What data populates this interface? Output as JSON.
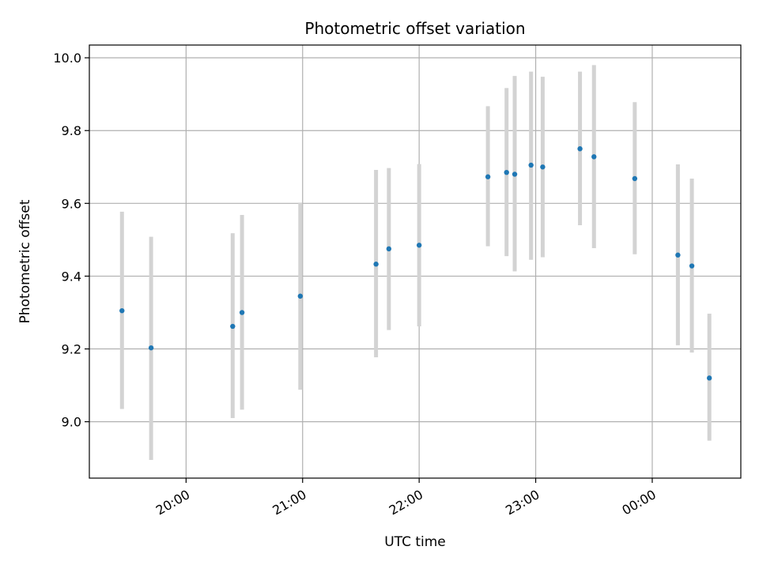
{
  "chart_data": {
    "type": "scatter",
    "title": "Photometric offset variation",
    "xlabel": "UTC time",
    "ylabel": "Photometric offset",
    "x_unit": "hours",
    "x_ticks": [
      {
        "value": 20,
        "label": "20:00"
      },
      {
        "value": 21,
        "label": "21:00"
      },
      {
        "value": 22,
        "label": "22:00"
      },
      {
        "value": 23,
        "label": "23:00"
      },
      {
        "value": 24,
        "label": "00:00"
      }
    ],
    "y_ticks": [
      {
        "value": 9.0,
        "label": "9.0"
      },
      {
        "value": 9.2,
        "label": "9.2"
      },
      {
        "value": 9.4,
        "label": "9.4"
      },
      {
        "value": 9.6,
        "label": "9.6"
      },
      {
        "value": 9.8,
        "label": "9.8"
      },
      {
        "value": 10.0,
        "label": "10.0"
      }
    ],
    "xlim": [
      19.17,
      24.76
    ],
    "ylim": [
      8.845,
      10.035
    ],
    "grid": true,
    "colors": {
      "point": "#1f77b4",
      "errorbar": "#d3d3d3",
      "grid": "#b0b0b0"
    },
    "series": [
      {
        "points": [
          {
            "time": "19:27",
            "x": 19.45,
            "y": 9.305,
            "ylow": 9.035,
            "yhigh": 9.577
          },
          {
            "time": "19:42",
            "x": 19.7,
            "y": 9.203,
            "ylow": 8.895,
            "yhigh": 9.508
          },
          {
            "time": "20:24",
            "x": 20.4,
            "y": 9.262,
            "ylow": 9.01,
            "yhigh": 9.518
          },
          {
            "time": "20:29",
            "x": 20.48,
            "y": 9.3,
            "ylow": 9.033,
            "yhigh": 9.568
          },
          {
            "time": "20:59",
            "x": 20.98,
            "y": 9.345,
            "ylow": 9.088,
            "yhigh": 9.602
          },
          {
            "time": "21:38",
            "x": 21.63,
            "y": 9.433,
            "ylow": 9.177,
            "yhigh": 9.692
          },
          {
            "time": "21:44",
            "x": 21.74,
            "y": 9.475,
            "ylow": 9.252,
            "yhigh": 9.697
          },
          {
            "time": "22:00",
            "x": 22.0,
            "y": 9.485,
            "ylow": 9.262,
            "yhigh": 9.708
          },
          {
            "time": "22:35",
            "x": 22.59,
            "y": 9.673,
            "ylow": 9.482,
            "yhigh": 9.867
          },
          {
            "time": "22:45",
            "x": 22.75,
            "y": 9.685,
            "ylow": 9.455,
            "yhigh": 9.917
          },
          {
            "time": "22:49",
            "x": 22.82,
            "y": 9.68,
            "ylow": 9.413,
            "yhigh": 9.95
          },
          {
            "time": "22:58",
            "x": 22.96,
            "y": 9.705,
            "ylow": 9.445,
            "yhigh": 9.962
          },
          {
            "time": "23:03",
            "x": 23.06,
            "y": 9.7,
            "ylow": 9.452,
            "yhigh": 9.948
          },
          {
            "time": "23:23",
            "x": 23.38,
            "y": 9.75,
            "ylow": 9.54,
            "yhigh": 9.962
          },
          {
            "time": "23:30",
            "x": 23.5,
            "y": 9.728,
            "ylow": 9.477,
            "yhigh": 9.98
          },
          {
            "time": "23:51",
            "x": 23.85,
            "y": 9.668,
            "ylow": 9.46,
            "yhigh": 9.878
          },
          {
            "time": "00:13",
            "x": 24.22,
            "y": 9.458,
            "ylow": 9.21,
            "yhigh": 9.707
          },
          {
            "time": "00:20",
            "x": 24.34,
            "y": 9.428,
            "ylow": 9.19,
            "yhigh": 9.668
          },
          {
            "time": "00:30",
            "x": 24.49,
            "y": 9.12,
            "ylow": 8.948,
            "yhigh": 9.297
          }
        ]
      }
    ]
  }
}
